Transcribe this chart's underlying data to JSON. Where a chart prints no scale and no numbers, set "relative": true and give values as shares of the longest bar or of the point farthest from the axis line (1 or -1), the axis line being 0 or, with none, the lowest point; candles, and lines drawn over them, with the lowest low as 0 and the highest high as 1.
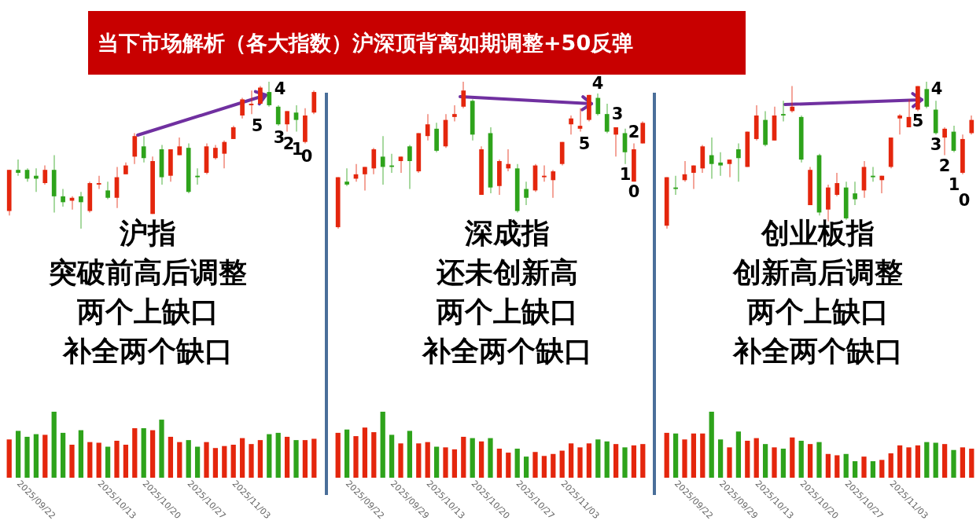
{
  "chart_data": [
    {
      "type": "other",
      "title": "当下市场解析（各大指数）沪深顶背离如期调整+50反弹"
    },
    {
      "type": "candlestick",
      "relative": true,
      "tick_labels": false,
      "categories": [
        null,
        "2025/09/22",
        null,
        null,
        null,
        null,
        null,
        null,
        null,
        null,
        "2025/10/13",
        null,
        null,
        null,
        null,
        "2025/10/20",
        null,
        null,
        null,
        null,
        "2025/10/27",
        null,
        null,
        null,
        null,
        "2025/11/03",
        null,
        null,
        null,
        null,
        null,
        null,
        null,
        null,
        null
      ],
      "ohlc": [
        [
          0.12,
          0.4,
          0.09,
          0.4
        ],
        [
          0.4,
          0.47,
          0.36,
          0.38
        ],
        [
          0.4,
          0.41,
          0.32,
          0.34
        ],
        [
          0.36,
          0.41,
          0.25,
          0.34
        ],
        [
          0.31,
          0.43,
          0.3,
          0.4
        ],
        [
          0.4,
          0.5,
          0.11,
          0.22
        ],
        [
          0.22,
          0.27,
          0.15,
          0.18
        ],
        [
          0.19,
          0.22,
          0.13,
          0.21
        ],
        [
          0.22,
          0.25,
          0,
          0.18
        ],
        [
          0.12,
          0.32,
          0.11,
          0.31
        ],
        [
          0.3,
          0.36,
          0.27,
          0.31
        ],
        [
          0.26,
          0.32,
          0.2,
          0.21
        ],
        [
          0.21,
          0.42,
          0.14,
          0.35
        ],
        [
          0.37,
          0.45,
          0.37,
          0.43
        ],
        [
          0.49,
          0.65,
          0.44,
          0.63
        ],
        [
          0.56,
          0.63,
          0.45,
          0.48
        ],
        [
          0.1,
          0.49,
          0.1,
          0.46
        ],
        [
          0.54,
          0.57,
          0.3,
          0.35
        ],
        [
          0.36,
          0.54,
          0.32,
          0.54
        ],
        [
          0.5,
          0.62,
          0.5,
          0.56
        ],
        [
          0.55,
          0.58,
          0.24,
          0.25
        ],
        [
          0.36,
          0.41,
          0.3,
          0.35
        ],
        [
          0.38,
          0.58,
          0.37,
          0.56
        ],
        [
          0.48,
          0.57,
          0.47,
          0.55
        ],
        [
          0.51,
          0.6,
          0.41,
          0.59
        ],
        [
          0.61,
          0.7,
          0.61,
          0.69
        ],
        [
          0.77,
          0.89,
          0.75,
          0.88
        ],
        [
          0.84,
          0.94,
          0.78,
          0.85
        ],
        [
          0.85,
          0.97,
          0.85,
          0.96
        ],
        [
          0.93,
          1,
          0.83,
          0.84
        ],
        [
          0.83,
          0.84,
          0.7,
          0.71
        ],
        [
          0.71,
          0.8,
          0.66,
          0.8
        ],
        [
          0.79,
          0.84,
          0.66,
          0.74
        ],
        [
          0.59,
          0.82,
          0.58,
          0.77
        ],
        [
          0.79,
          0.94,
          0.78,
          0.93
        ]
      ],
      "colors": [
        "#e4260d",
        "#2ea31b",
        "#2ea31b",
        "#2ea31b",
        "#e4260d",
        "#2ea31b",
        "#2ea31b",
        "#e4260d",
        "#2ea31b",
        "#e4260d",
        "#e4260d",
        "#2ea31b",
        "#e4260d",
        "#e4260d",
        "#e4260d",
        "#2ea31b",
        "#e4260d",
        "#2ea31b",
        "#e4260d",
        "#e4260d",
        "#2ea31b",
        "#2ea31b",
        "#e4260d",
        "#e4260d",
        "#e4260d",
        "#e4260d",
        "#e4260d",
        "#e4260d",
        "#e4260d",
        "#2ea31b",
        "#2ea31b",
        "#e4260d",
        "#2ea31b",
        "#e4260d",
        "#e4260d"
      ],
      "annotations": [
        "沪指",
        "突破前高后调整",
        "两个上缺口",
        "补全两个缺口",
        "5",
        "4",
        "3",
        "2",
        "1",
        "0"
      ]
    },
    {
      "type": "bar",
      "relative": true,
      "categories": [
        null,
        "2025/09/22",
        null,
        null,
        null,
        null,
        null,
        null,
        null,
        null,
        "2025/10/13",
        null,
        null,
        null,
        null,
        "2025/10/20",
        null,
        null,
        null,
        null,
        "2025/10/27",
        null,
        null,
        null,
        null,
        "2025/11/03",
        null,
        null,
        null,
        null,
        null,
        null,
        null,
        null,
        null
      ],
      "values": [
        0.58,
        0.71,
        0.62,
        0.66,
        0.65,
        1,
        0.68,
        0.5,
        0.72,
        0.54,
        0.53,
        0.47,
        0.56,
        0.5,
        0.75,
        0.75,
        0.72,
        0.88,
        0.62,
        0.54,
        0.57,
        0.47,
        0.54,
        0.45,
        0.48,
        0.5,
        0.6,
        0.51,
        0.57,
        0.66,
        0.68,
        0.62,
        0.57,
        0.57,
        0.59
      ],
      "colors": [
        "#e4260d",
        "#2ea31b",
        "#2ea31b",
        "#2ea31b",
        "#e4260d",
        "#2ea31b",
        "#2ea31b",
        "#e4260d",
        "#2ea31b",
        "#e4260d",
        "#e4260d",
        "#2ea31b",
        "#e4260d",
        "#e4260d",
        "#e4260d",
        "#2ea31b",
        "#e4260d",
        "#2ea31b",
        "#e4260d",
        "#e4260d",
        "#2ea31b",
        "#2ea31b",
        "#e4260d",
        "#e4260d",
        "#e4260d",
        "#e4260d",
        "#e4260d",
        "#e4260d",
        "#e4260d",
        "#2ea31b",
        "#2ea31b",
        "#e4260d",
        "#2ea31b",
        "#e4260d",
        "#e4260d"
      ]
    },
    {
      "type": "candlestick",
      "relative": true,
      "tick_labels": false,
      "categories": [
        null,
        "2025/09/22",
        null,
        null,
        null,
        null,
        "2025/09/29",
        null,
        null,
        null,
        "2025/10/13",
        null,
        null,
        null,
        null,
        "2025/10/20",
        null,
        null,
        null,
        null,
        "2025/10/27",
        null,
        null,
        null,
        null,
        "2025/11/03",
        null,
        null,
        null,
        null,
        null,
        null,
        null,
        null,
        null
      ],
      "ohlc": [
        [
          0.01,
          0.35,
          0,
          0.35
        ],
        [
          0.32,
          0.41,
          0.29,
          0.3
        ],
        [
          0.34,
          0.44,
          0.32,
          0.37
        ],
        [
          0.37,
          0.42,
          0.26,
          0.42
        ],
        [
          0.41,
          0.55,
          0.37,
          0.54
        ],
        [
          0.49,
          0.63,
          0.3,
          0.42
        ],
        [
          0.43,
          0.51,
          0.38,
          0.42
        ],
        [
          0.46,
          0.49,
          0.38,
          0.49
        ],
        [
          0.56,
          0.57,
          0.27,
          0.46
        ],
        [
          0.39,
          0.65,
          0.38,
          0.65
        ],
        [
          0.63,
          0.78,
          0.6,
          0.71
        ],
        [
          0.68,
          0.72,
          0.52,
          0.53
        ],
        [
          0.56,
          0.78,
          0.55,
          0.74
        ],
        [
          0.76,
          0.84,
          0.73,
          0.78
        ],
        [
          0.83,
          1,
          0.82,
          0.94
        ],
        [
          0.87,
          0.88,
          0.6,
          0.64
        ],
        [
          0.23,
          0.56,
          0.23,
          0.54
        ],
        [
          0.65,
          0.69,
          0.24,
          0.28
        ],
        [
          0.29,
          0.47,
          0.23,
          0.46
        ],
        [
          0.41,
          0.54,
          0.39,
          0.44
        ],
        [
          0.41,
          0.44,
          0.11,
          0.12
        ],
        [
          0.27,
          0.32,
          0.16,
          0.21
        ],
        [
          0.26,
          0.44,
          0.25,
          0.43
        ],
        [
          0.35,
          0.43,
          0.32,
          0.36
        ],
        [
          0.33,
          0.4,
          0.21,
          0.39
        ],
        [
          0.44,
          0.59,
          0.43,
          0.59
        ],
        [
          0.71,
          0.77,
          0.64,
          0.75
        ],
        [
          0.68,
          0.82,
          0.66,
          0.7
        ],
        [
          0.74,
          0.91,
          0.73,
          0.91
        ],
        [
          0.89,
          0.92,
          0.77,
          0.78
        ],
        [
          0.78,
          0.85,
          0.65,
          0.66
        ],
        [
          0.64,
          0.69,
          0.49,
          0.69
        ],
        [
          0.65,
          0.68,
          0.44,
          0.52
        ],
        [
          0.32,
          0.58,
          0.32,
          0.54
        ],
        [
          0.58,
          0.73,
          0.58,
          0.72
        ]
      ],
      "colors": [
        "#e4260d",
        "#2ea31b",
        "#e4260d",
        "#e4260d",
        "#e4260d",
        "#2ea31b",
        "#2ea31b",
        "#e4260d",
        "#2ea31b",
        "#e4260d",
        "#e4260d",
        "#2ea31b",
        "#e4260d",
        "#e4260d",
        "#e4260d",
        "#2ea31b",
        "#e4260d",
        "#2ea31b",
        "#e4260d",
        "#e4260d",
        "#2ea31b",
        "#2ea31b",
        "#e4260d",
        "#e4260d",
        "#e4260d",
        "#e4260d",
        "#e4260d",
        "#e4260d",
        "#e4260d",
        "#2ea31b",
        "#2ea31b",
        "#e4260d",
        "#2ea31b",
        "#e4260d",
        "#e4260d"
      ],
      "annotations": [
        "深成指",
        "还未创新高",
        "两个上缺口",
        "补全两个缺口",
        "5",
        "4",
        "3",
        "2",
        "1",
        "0"
      ]
    },
    {
      "type": "bar",
      "relative": true,
      "categories": [
        null,
        "2025/09/22",
        null,
        null,
        null,
        null,
        "2025/09/29",
        null,
        null,
        null,
        "2025/10/13",
        null,
        null,
        null,
        null,
        "2025/10/20",
        null,
        null,
        null,
        null,
        "2025/10/27",
        null,
        null,
        null,
        null,
        "2025/11/03",
        null,
        null,
        null,
        null,
        null,
        null,
        null,
        null,
        null
      ],
      "values": [
        0.68,
        0.73,
        0.63,
        0.76,
        0.69,
        1,
        0.65,
        0.52,
        0.71,
        0.52,
        0.54,
        0.47,
        0.46,
        0.43,
        0.62,
        0.6,
        0.55,
        0.6,
        0.44,
        0.38,
        0.44,
        0.32,
        0.39,
        0.33,
        0.36,
        0.41,
        0.52,
        0.46,
        0.52,
        0.58,
        0.55,
        0.51,
        0.46,
        0.49,
        0.51
      ],
      "colors": [
        "#e4260d",
        "#2ea31b",
        "#e4260d",
        "#e4260d",
        "#e4260d",
        "#2ea31b",
        "#2ea31b",
        "#e4260d",
        "#2ea31b",
        "#e4260d",
        "#e4260d",
        "#2ea31b",
        "#e4260d",
        "#e4260d",
        "#e4260d",
        "#2ea31b",
        "#e4260d",
        "#2ea31b",
        "#e4260d",
        "#e4260d",
        "#2ea31b",
        "#2ea31b",
        "#e4260d",
        "#e4260d",
        "#e4260d",
        "#e4260d",
        "#e4260d",
        "#e4260d",
        "#e4260d",
        "#2ea31b",
        "#2ea31b",
        "#e4260d",
        "#2ea31b",
        "#e4260d",
        "#e4260d"
      ]
    },
    {
      "type": "candlestick",
      "relative": true,
      "tick_labels": false,
      "categories": [
        null,
        "2025/09/22",
        null,
        null,
        null,
        null,
        "2025/09/29",
        null,
        null,
        null,
        "2025/10/13",
        null,
        null,
        null,
        null,
        "2025/10/20",
        null,
        null,
        null,
        null,
        "2025/10/27",
        null,
        null,
        null,
        null,
        "2025/11/03",
        null,
        null,
        null,
        null,
        null,
        null,
        null,
        null,
        null
      ],
      "ohlc": [
        [
          0.02,
          0.35,
          0,
          0.35
        ],
        [
          0.28,
          0.36,
          0.23,
          0.27
        ],
        [
          0.33,
          0.46,
          0.32,
          0.37
        ],
        [
          0.38,
          0.43,
          0.27,
          0.43
        ],
        [
          0.41,
          0.57,
          0.38,
          0.56
        ],
        [
          0.5,
          0.62,
          0.34,
          0.44
        ],
        [
          0.45,
          0.52,
          0.36,
          0.43
        ],
        [
          0.44,
          0.47,
          0.35,
          0.47
        ],
        [
          0.54,
          0.58,
          0.32,
          0.48
        ],
        [
          0.42,
          0.66,
          0.42,
          0.66
        ],
        [
          0.61,
          0.84,
          0.6,
          0.77
        ],
        [
          0.74,
          0.8,
          0.56,
          0.57
        ],
        [
          0.6,
          0.83,
          0.6,
          0.77
        ],
        [
          0.78,
          0.87,
          0.73,
          0.77
        ],
        [
          0.8,
          0.97,
          0.79,
          0.83
        ],
        [
          0.76,
          0.77,
          0.45,
          0.47
        ],
        [
          0.16,
          0.42,
          0.16,
          0.4
        ],
        [
          0.5,
          0.51,
          0.09,
          0.11
        ],
        [
          0.13,
          0.3,
          0.05,
          0.28
        ],
        [
          0.23,
          0.38,
          0.22,
          0.31
        ],
        [
          0.28,
          0.32,
          0.06,
          0.07
        ],
        [
          0.24,
          0.32,
          0.16,
          0.2
        ],
        [
          0.26,
          0.46,
          0.21,
          0.42
        ],
        [
          0.36,
          0.42,
          0.32,
          0.35
        ],
        [
          0.33,
          0.36,
          0.24,
          0.36
        ],
        [
          0.42,
          0.62,
          0.41,
          0.62
        ],
        [
          0.75,
          0.78,
          0.64,
          0.77
        ],
        [
          0.69,
          0.88,
          0.69,
          0.76
        ],
        [
          0.81,
          0.97,
          0.8,
          0.97
        ],
        [
          0.95,
          1,
          0.82,
          0.83
        ],
        [
          0.81,
          0.87,
          0.64,
          0.65
        ],
        [
          0.62,
          0.69,
          0.5,
          0.68
        ],
        [
          0.66,
          0.7,
          0.52,
          0.53
        ],
        [
          0.38,
          0.64,
          0.37,
          0.61
        ],
        [
          0.65,
          0.77,
          0.64,
          0.74
        ]
      ],
      "colors": [
        "#e4260d",
        "#2ea31b",
        "#e4260d",
        "#e4260d",
        "#e4260d",
        "#2ea31b",
        "#2ea31b",
        "#e4260d",
        "#2ea31b",
        "#e4260d",
        "#e4260d",
        "#2ea31b",
        "#e4260d",
        "#2ea31b",
        "#e4260d",
        "#2ea31b",
        "#e4260d",
        "#2ea31b",
        "#e4260d",
        "#e4260d",
        "#2ea31b",
        "#2ea31b",
        "#e4260d",
        "#2ea31b",
        "#e4260d",
        "#e4260d",
        "#e4260d",
        "#e4260d",
        "#e4260d",
        "#2ea31b",
        "#2ea31b",
        "#e4260d",
        "#2ea31b",
        "#e4260d",
        "#e4260d"
      ],
      "annotations": [
        "创业板指",
        "创新高后调整",
        "两个上缺口",
        "补全两个缺口",
        "5",
        "4",
        "3",
        "2",
        "1",
        "0"
      ]
    },
    {
      "type": "bar",
      "relative": true,
      "categories": [
        null,
        "2025/09/22",
        null,
        null,
        null,
        null,
        "2025/09/29",
        null,
        null,
        null,
        "2025/10/13",
        null,
        null,
        null,
        null,
        "2025/10/20",
        null,
        null,
        null,
        null,
        "2025/10/27",
        null,
        null,
        null,
        null,
        "2025/11/03",
        null,
        null,
        null,
        null,
        null,
        null,
        null,
        null,
        null
      ],
      "values": [
        0.68,
        0.67,
        0.58,
        0.67,
        0.67,
        1,
        0.58,
        0.46,
        0.7,
        0.56,
        0.6,
        0.51,
        0.46,
        0.44,
        0.61,
        0.56,
        0.51,
        0.54,
        0.36,
        0.34,
        0.36,
        0.25,
        0.32,
        0.25,
        0.27,
        0.37,
        0.49,
        0.46,
        0.49,
        0.54,
        0.53,
        0.51,
        0.42,
        0.46,
        0.44
      ],
      "colors": [
        "#e4260d",
        "#2ea31b",
        "#e4260d",
        "#e4260d",
        "#e4260d",
        "#2ea31b",
        "#2ea31b",
        "#e4260d",
        "#2ea31b",
        "#e4260d",
        "#e4260d",
        "#2ea31b",
        "#e4260d",
        "#2ea31b",
        "#e4260d",
        "#2ea31b",
        "#e4260d",
        "#2ea31b",
        "#e4260d",
        "#e4260d",
        "#2ea31b",
        "#2ea31b",
        "#e4260d",
        "#2ea31b",
        "#e4260d",
        "#e4260d",
        "#e4260d",
        "#e4260d",
        "#e4260d",
        "#2ea31b",
        "#2ea31b",
        "#e4260d",
        "#2ea31b",
        "#e4260d",
        "#e4260d"
      ]
    }
  ]
}
